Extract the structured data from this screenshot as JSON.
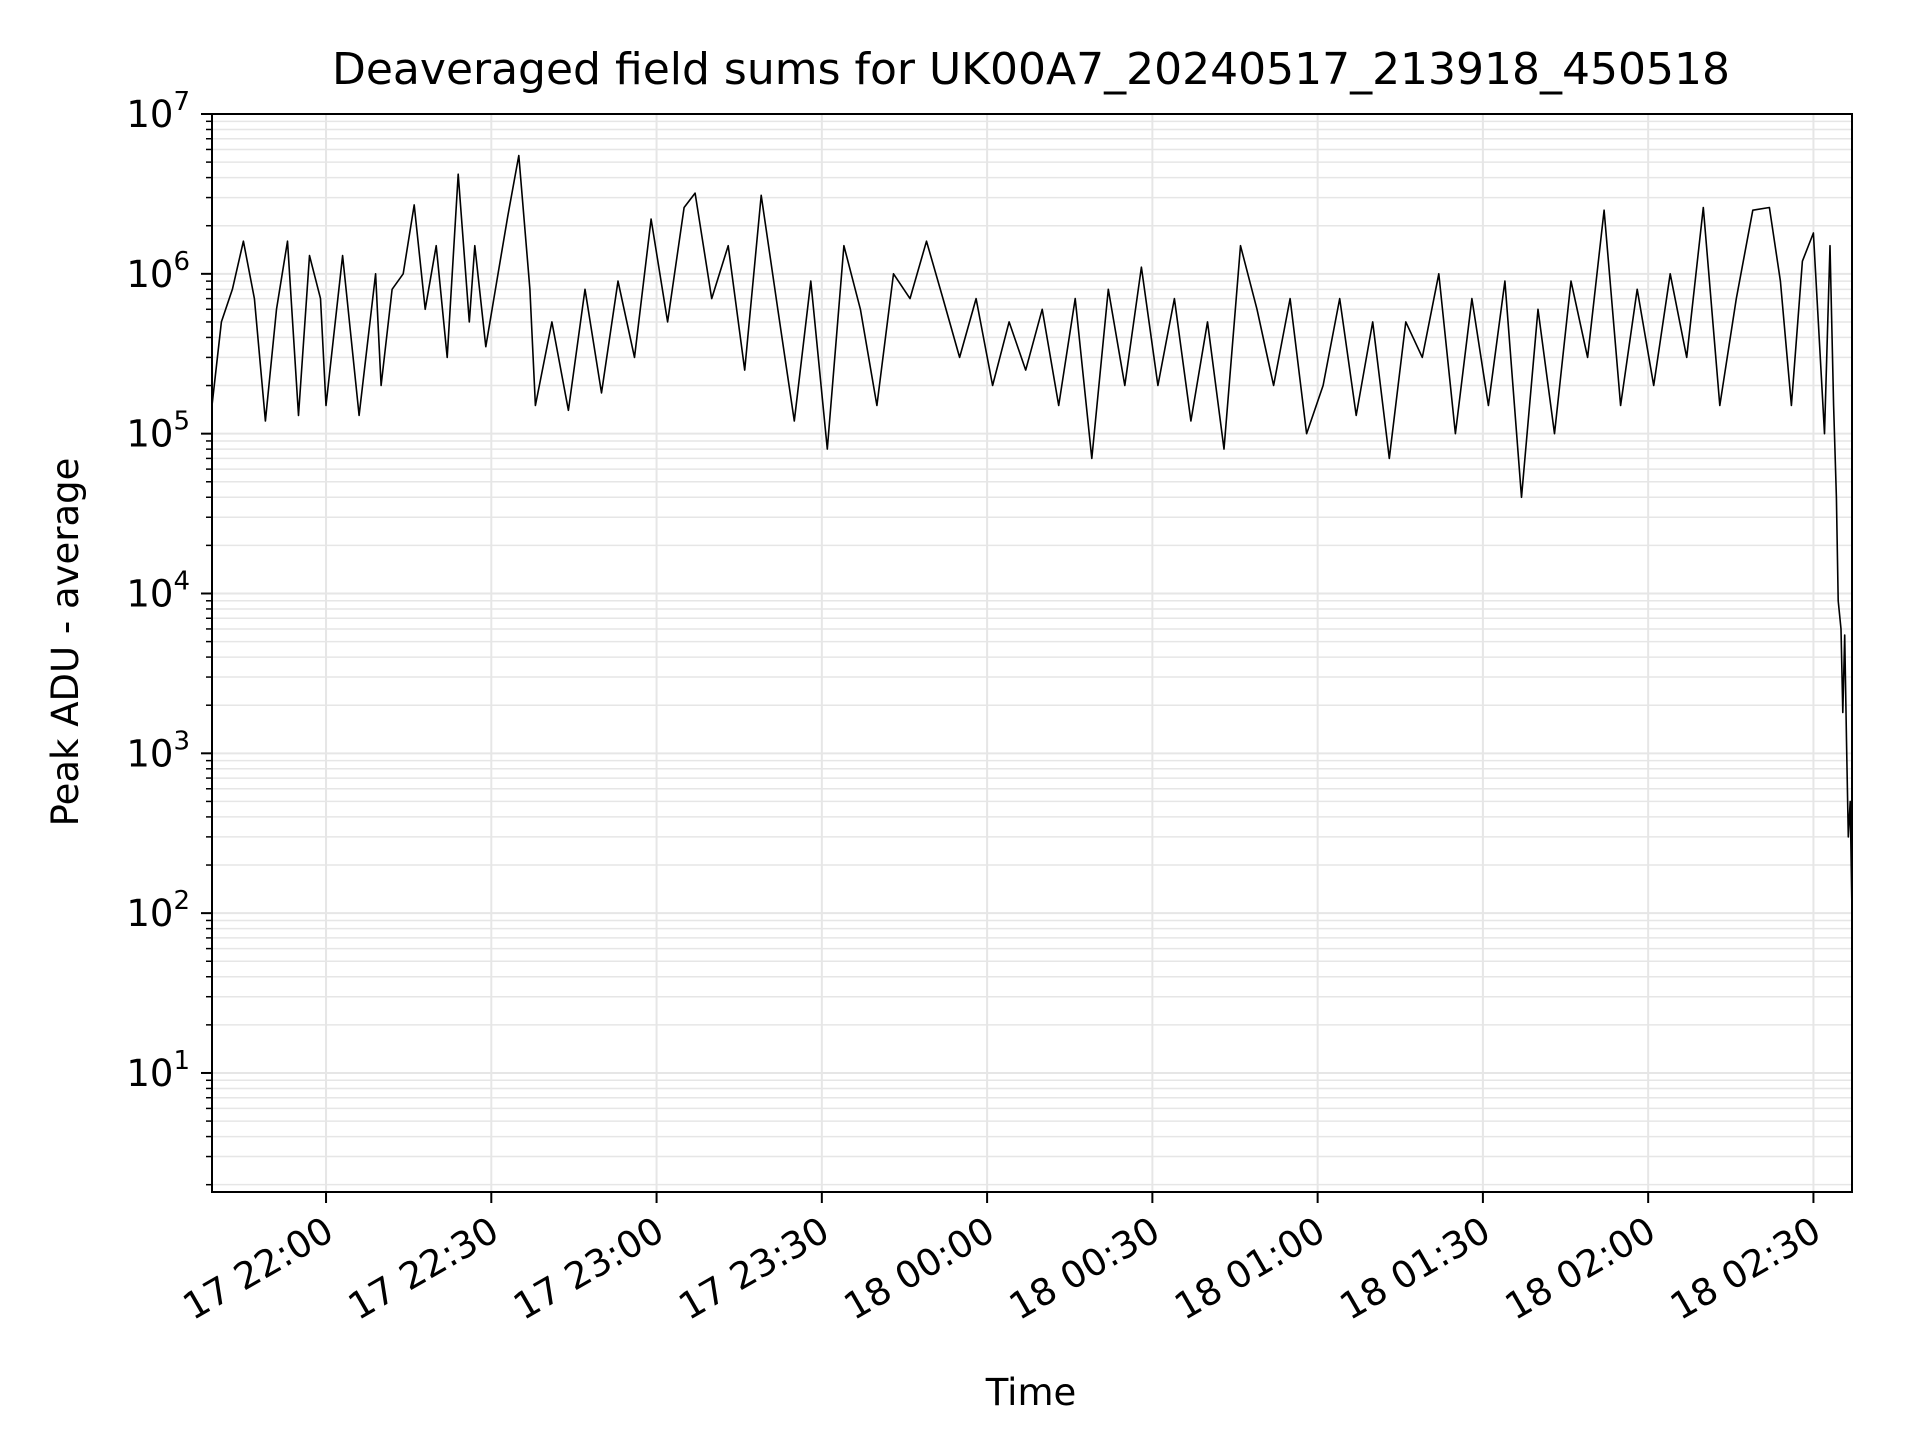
{
  "chart_data": {
    "type": "line",
    "title": "Deaveraged field sums for UK00A7_20240517_213918_450518",
    "xlabel": "Time",
    "ylabel": "Peak ADU - average",
    "yscale": "log",
    "ylim": [
      1.8,
      10000000
    ],
    "xlim": [
      "2024-05-17 21:39:18",
      "2024-05-18 02:37:00"
    ],
    "grid": true,
    "line_color": "#000000",
    "grid_color": "#e6e6e6",
    "x_ticks": [
      {
        "label": "17 22:00",
        "value": "2024-05-17 22:00"
      },
      {
        "label": "17 22:30",
        "value": "2024-05-17 22:30"
      },
      {
        "label": "17 23:00",
        "value": "2024-05-17 23:00"
      },
      {
        "label": "17 23:30",
        "value": "2024-05-17 23:30"
      },
      {
        "label": "18 00:00",
        "value": "2024-05-18 00:00"
      },
      {
        "label": "18 00:30",
        "value": "2024-05-18 00:30"
      },
      {
        "label": "18 01:00",
        "value": "2024-05-18 01:00"
      },
      {
        "label": "18 01:30",
        "value": "2024-05-18 01:30"
      },
      {
        "label": "18 02:00",
        "value": "2024-05-18 02:00"
      },
      {
        "label": "18 02:30",
        "value": "2024-05-18 02:30"
      }
    ],
    "y_ticks": [
      {
        "base": "10",
        "exp": "1",
        "value": 10
      },
      {
        "base": "10",
        "exp": "2",
        "value": 100
      },
      {
        "base": "10",
        "exp": "3",
        "value": 1000
      },
      {
        "base": "10",
        "exp": "4",
        "value": 10000
      },
      {
        "base": "10",
        "exp": "5",
        "value": 100000
      },
      {
        "base": "10",
        "exp": "6",
        "value": 1000000
      },
      {
        "base": "10",
        "exp": "7",
        "value": 10000000
      }
    ],
    "series": [
      {
        "points": [
          [
            "2024-05-17 21:39:18",
            150000
          ],
          [
            "2024-05-17 21:41",
            500000
          ],
          [
            "2024-05-17 21:43",
            800000
          ],
          [
            "2024-05-17 21:45",
            1600000
          ],
          [
            "2024-05-17 21:47",
            700000
          ],
          [
            "2024-05-17 21:49",
            120000
          ],
          [
            "2024-05-17 21:51",
            600000
          ],
          [
            "2024-05-17 21:53",
            1600000
          ],
          [
            "2024-05-17 21:55",
            130000
          ],
          [
            "2024-05-17 21:57",
            1300000
          ],
          [
            "2024-05-17 21:59",
            700000
          ],
          [
            "2024-05-17 22:00",
            150000
          ],
          [
            "2024-05-17 22:03",
            1300000
          ],
          [
            "2024-05-17 22:06",
            130000
          ],
          [
            "2024-05-17 22:09",
            1000000
          ],
          [
            "2024-05-17 22:10",
            200000
          ],
          [
            "2024-05-17 22:12",
            800000
          ],
          [
            "2024-05-17 22:14",
            1000000
          ],
          [
            "2024-05-17 22:16",
            2700000
          ],
          [
            "2024-05-17 22:18",
            600000
          ],
          [
            "2024-05-17 22:20",
            1500000
          ],
          [
            "2024-05-17 22:22",
            300000
          ],
          [
            "2024-05-17 22:24",
            4200000
          ],
          [
            "2024-05-17 22:26",
            500000
          ],
          [
            "2024-05-17 22:27",
            1500000
          ],
          [
            "2024-05-17 22:29",
            350000
          ],
          [
            "2024-05-17 22:31",
            900000
          ],
          [
            "2024-05-17 22:33",
            2300000
          ],
          [
            "2024-05-17 22:35",
            5500000
          ],
          [
            "2024-05-17 22:37",
            800000
          ],
          [
            "2024-05-17 22:38",
            150000
          ],
          [
            "2024-05-17 22:41",
            500000
          ],
          [
            "2024-05-17 22:44",
            140000
          ],
          [
            "2024-05-17 22:47",
            800000
          ],
          [
            "2024-05-17 22:50",
            180000
          ],
          [
            "2024-05-17 22:53",
            900000
          ],
          [
            "2024-05-17 22:56",
            300000
          ],
          [
            "2024-05-17 22:59",
            2200000
          ],
          [
            "2024-05-17 23:02",
            500000
          ],
          [
            "2024-05-17 23:05",
            2600000
          ],
          [
            "2024-05-17 23:07",
            3200000
          ],
          [
            "2024-05-17 23:10",
            700000
          ],
          [
            "2024-05-17 23:13",
            1500000
          ],
          [
            "2024-05-17 23:16",
            250000
          ],
          [
            "2024-05-17 23:19",
            3100000
          ],
          [
            "2024-05-17 23:22",
            600000
          ],
          [
            "2024-05-17 23:25",
            120000
          ],
          [
            "2024-05-17 23:28",
            900000
          ],
          [
            "2024-05-17 23:31",
            80000
          ],
          [
            "2024-05-17 23:34",
            1500000
          ],
          [
            "2024-05-17 23:37",
            600000
          ],
          [
            "2024-05-17 23:40",
            150000
          ],
          [
            "2024-05-17 23:43",
            1000000
          ],
          [
            "2024-05-17 23:46",
            700000
          ],
          [
            "2024-05-17 23:49",
            1600000
          ],
          [
            "2024-05-17 23:52",
            700000
          ],
          [
            "2024-05-17 23:55",
            300000
          ],
          [
            "2024-05-17 23:58",
            700000
          ],
          [
            "2024-05-18 00:01",
            200000
          ],
          [
            "2024-05-18 00:04",
            500000
          ],
          [
            "2024-05-18 00:07",
            250000
          ],
          [
            "2024-05-18 00:10",
            600000
          ],
          [
            "2024-05-18 00:13",
            150000
          ],
          [
            "2024-05-18 00:16",
            700000
          ],
          [
            "2024-05-18 00:19",
            70000
          ],
          [
            "2024-05-18 00:22",
            800000
          ],
          [
            "2024-05-18 00:25",
            200000
          ],
          [
            "2024-05-18 00:28",
            1100000
          ],
          [
            "2024-05-18 00:31",
            200000
          ],
          [
            "2024-05-18 00:34",
            700000
          ],
          [
            "2024-05-18 00:37",
            120000
          ],
          [
            "2024-05-18 00:40",
            500000
          ],
          [
            "2024-05-18 00:43",
            80000
          ],
          [
            "2024-05-18 00:46",
            1500000
          ],
          [
            "2024-05-18 00:49",
            600000
          ],
          [
            "2024-05-18 00:52",
            200000
          ],
          [
            "2024-05-18 00:55",
            700000
          ],
          [
            "2024-05-18 00:58",
            100000
          ],
          [
            "2024-05-18 01:01",
            200000
          ],
          [
            "2024-05-18 01:04",
            700000
          ],
          [
            "2024-05-18 01:07",
            130000
          ],
          [
            "2024-05-18 01:10",
            500000
          ],
          [
            "2024-05-18 01:13",
            70000
          ],
          [
            "2024-05-18 01:16",
            500000
          ],
          [
            "2024-05-18 01:19",
            300000
          ],
          [
            "2024-05-18 01:22",
            1000000
          ],
          [
            "2024-05-18 01:25",
            100000
          ],
          [
            "2024-05-18 01:28",
            700000
          ],
          [
            "2024-05-18 01:31",
            150000
          ],
          [
            "2024-05-18 01:34",
            900000
          ],
          [
            "2024-05-18 01:37",
            40000
          ],
          [
            "2024-05-18 01:40",
            600000
          ],
          [
            "2024-05-18 01:43",
            100000
          ],
          [
            "2024-05-18 01:46",
            900000
          ],
          [
            "2024-05-18 01:49",
            300000
          ],
          [
            "2024-05-18 01:52",
            2500000
          ],
          [
            "2024-05-18 01:55",
            150000
          ],
          [
            "2024-05-18 01:58",
            800000
          ],
          [
            "2024-05-18 02:01",
            200000
          ],
          [
            "2024-05-18 02:04",
            1000000
          ],
          [
            "2024-05-18 02:07",
            300000
          ],
          [
            "2024-05-18 02:10",
            2600000
          ],
          [
            "2024-05-18 02:13",
            150000
          ],
          [
            "2024-05-18 02:16",
            700000
          ],
          [
            "2024-05-18 02:19",
            2500000
          ],
          [
            "2024-05-18 02:22",
            2600000
          ],
          [
            "2024-05-18 02:24",
            900000
          ],
          [
            "2024-05-18 02:26",
            150000
          ],
          [
            "2024-05-18 02:28",
            1200000
          ],
          [
            "2024-05-18 02:30",
            1800000
          ],
          [
            "2024-05-18 02:32",
            100000
          ],
          [
            "2024-05-18 02:33",
            1500000
          ],
          [
            "2024-05-18 02:33:40",
            150000
          ],
          [
            "2024-05-18 02:34:10",
            40000
          ],
          [
            "2024-05-18 02:34:30",
            9000
          ],
          [
            "2024-05-18 02:35",
            6000
          ],
          [
            "2024-05-18 02:35:20",
            1800
          ],
          [
            "2024-05-18 02:35:40",
            5500
          ],
          [
            "2024-05-18 02:36",
            1200
          ],
          [
            "2024-05-18 02:36:20",
            300
          ],
          [
            "2024-05-18 02:36:40",
            500
          ],
          [
            "2024-05-18 02:37:00",
            100
          ],
          [
            "2024-05-18 02:37:00",
            4
          ]
        ]
      }
    ]
  }
}
